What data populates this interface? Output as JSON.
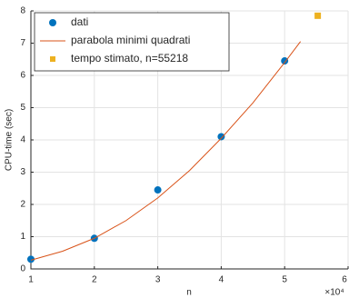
{
  "chart_data": {
    "type": "scatter",
    "x_label": "n",
    "y_label": "CPU-time (sec)",
    "x_multiplier": "×10⁴",
    "xlim": [
      10000,
      60000
    ],
    "xticks": [
      {
        "value": 10000,
        "label": "1"
      },
      {
        "value": 20000,
        "label": "2"
      },
      {
        "value": 30000,
        "label": "3"
      },
      {
        "value": 40000,
        "label": "4"
      },
      {
        "value": 50000,
        "label": "5"
      },
      {
        "value": 60000,
        "label": "6"
      }
    ],
    "ylim": [
      0,
      8
    ],
    "yticks": [
      0,
      1,
      2,
      3,
      4,
      5,
      6,
      7,
      8
    ],
    "grid": true,
    "legend": "upper left",
    "series": [
      {
        "name": "dati",
        "color": "#0072bd",
        "style": "dot",
        "x": [
          10000,
          20000,
          30000,
          40000,
          50000
        ],
        "values": [
          0.3,
          0.95,
          2.45,
          4.1,
          6.45
        ]
      },
      {
        "name": "parabola minimi quadrati",
        "color": "#d95319",
        "style": "line",
        "x": [
          10000,
          15000,
          20000,
          25000,
          30000,
          35000,
          40000,
          45000,
          50000,
          52500
        ],
        "values": [
          0.27,
          0.55,
          0.95,
          1.5,
          2.2,
          3.05,
          4.05,
          5.15,
          6.4,
          7.05
        ]
      },
      {
        "name": "tempo stimato, n=55218",
        "color": "#edb120",
        "style": "square",
        "x": [
          55218
        ],
        "values": [
          7.85
        ]
      }
    ]
  }
}
